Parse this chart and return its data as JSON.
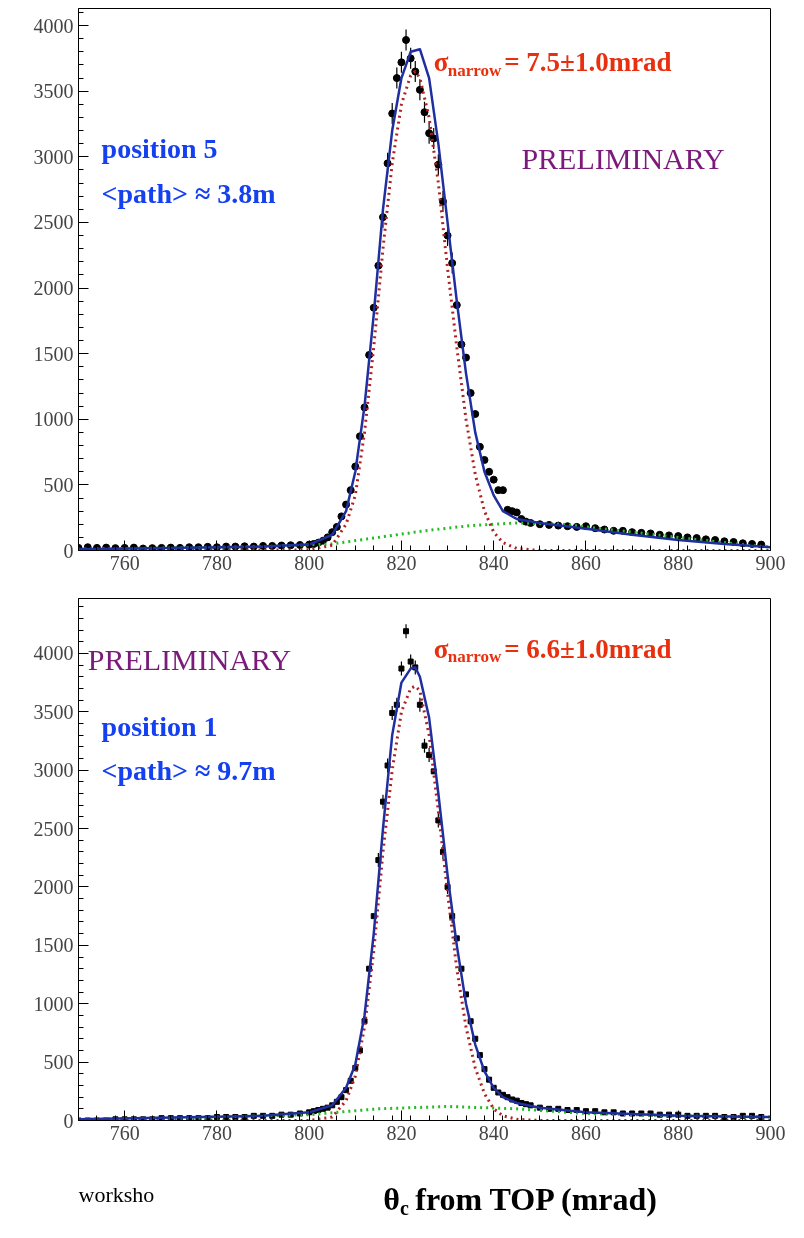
{
  "chart_data": [
    {
      "type": "scatter",
      "xlim": [
        750,
        900
      ],
      "ylim": [
        0,
        4130
      ],
      "xticks": [
        760,
        780,
        800,
        820,
        840,
        860,
        880,
        900
      ],
      "yticks": [
        0,
        500,
        1000,
        1500,
        2000,
        2500,
        3000,
        3500,
        4000
      ],
      "grid": false,
      "annotations": [
        "σ$_{narrow}$= 7.5±1.0mrad",
        "position 5",
        "<path> ≈ 3.8m",
        "PRELIMINARY"
      ],
      "series": [
        {
          "marker": "circle",
          "color": "#000000",
          "x": [
            750,
            752,
            754,
            756,
            758,
            760,
            762,
            764,
            766,
            768,
            770,
            772,
            774,
            776,
            778,
            780,
            782,
            784,
            786,
            788,
            790,
            792,
            794,
            796,
            798,
            800,
            801,
            802,
            803,
            804,
            805,
            806,
            807,
            808,
            809,
            810,
            811,
            812,
            813,
            814,
            815,
            816,
            817,
            818,
            819,
            820,
            821,
            822,
            823,
            824,
            825,
            826,
            827,
            828,
            829,
            830,
            831,
            832,
            833,
            834,
            835,
            836,
            837,
            838,
            839,
            840,
            841,
            842,
            843,
            844,
            845,
            846,
            847,
            848,
            850,
            852,
            854,
            856,
            858,
            860,
            862,
            864,
            866,
            868,
            870,
            872,
            874,
            876,
            878,
            880,
            882,
            884,
            886,
            888,
            890,
            892,
            894,
            896,
            898
          ],
          "values": [
            20,
            25,
            20,
            22,
            18,
            20,
            22,
            15,
            18,
            20,
            22,
            20,
            25,
            25,
            28,
            25,
            30,
            30,
            32,
            30,
            35,
            35,
            38,
            40,
            42,
            45,
            50,
            60,
            75,
            100,
            140,
            180,
            260,
            350,
            460,
            640,
            870,
            1090,
            1490,
            1850,
            2170,
            2540,
            2950,
            3330,
            3600,
            3720,
            3890,
            3750,
            3650,
            3510,
            3340,
            3180,
            3140,
            2940,
            2660,
            2400,
            2190,
            1870,
            1570,
            1470,
            1200,
            1040,
            790,
            690,
            600,
            540,
            460,
            460,
            310,
            300,
            290,
            240,
            220,
            210,
            200,
            195,
            190,
            185,
            180,
            185,
            170,
            160,
            150,
            150,
            140,
            135,
            130,
            120,
            115,
            110,
            100,
            95,
            85,
            80,
            70,
            65,
            55,
            50,
            45
          ],
          "errors": [
            null,
            null,
            null,
            null,
            null,
            null,
            null,
            null,
            null,
            null,
            null,
            null,
            null,
            null,
            null,
            null,
            null,
            null,
            null,
            null,
            null,
            null,
            null,
            null,
            null,
            null,
            null,
            null,
            null,
            null,
            null,
            null,
            null,
            null,
            null,
            null,
            null,
            null,
            null,
            null,
            null,
            80,
            80,
            80,
            80,
            80,
            80,
            80,
            80,
            80,
            80,
            80,
            80,
            80,
            80,
            80,
            80,
            null,
            null,
            null,
            null,
            null,
            null,
            null,
            null,
            null,
            null,
            null,
            null,
            null,
            null,
            null,
            null,
            null,
            null,
            null,
            null,
            null,
            null,
            null,
            null,
            null,
            null,
            null,
            null,
            null,
            null,
            null,
            null,
            null,
            null,
            null,
            null,
            null,
            null,
            null,
            null,
            null,
            null
          ]
        },
        {
          "type": "line",
          "color": "#22bb22",
          "line_style": "dotted",
          "x": [
            750,
            790,
            805,
            815,
            825,
            835,
            845,
            855,
            865,
            875,
            885,
            895,
            900
          ],
          "values": [
            10,
            30,
            50,
            100,
            150,
            190,
            210,
            200,
            160,
            120,
            80,
            40,
            25
          ]
        },
        {
          "type": "line",
          "color": "#b02020",
          "line_style": "dotted",
          "x": [
            750,
            800,
            805,
            808,
            810,
            812,
            814,
            816,
            818,
            820,
            822,
            823,
            824,
            826,
            828,
            830,
            832,
            834,
            836,
            838,
            840,
            842,
            845,
            850,
            900
          ],
          "values": [
            0,
            5,
            40,
            200,
            420,
            900,
            1550,
            2300,
            2950,
            3400,
            3620,
            3650,
            3600,
            3300,
            2800,
            2150,
            1550,
            1000,
            580,
            300,
            140,
            60,
            15,
            0,
            0
          ]
        },
        {
          "type": "line",
          "color": "#1f2fa0",
          "line_style": "solid",
          "x": [
            750,
            790,
            800,
            805,
            808,
            810,
            812,
            814,
            816,
            818,
            820,
            822,
            824,
            826,
            828,
            830,
            832,
            834,
            836,
            838,
            840,
            842,
            845,
            850,
            860,
            870,
            880,
            890,
            900
          ],
          "values": [
            10,
            30,
            45,
            120,
            300,
            600,
            1100,
            1800,
            2600,
            3200,
            3600,
            3800,
            3820,
            3600,
            3100,
            2500,
            1900,
            1350,
            900,
            600,
            420,
            300,
            240,
            210,
            165,
            120,
            80,
            50,
            25
          ]
        }
      ]
    },
    {
      "type": "scatter",
      "xlim": [
        750,
        900
      ],
      "ylim": [
        0,
        4470
      ],
      "xticks": [
        760,
        780,
        800,
        820,
        840,
        860,
        880,
        900
      ],
      "yticks": [
        0,
        500,
        1000,
        1500,
        2000,
        2500,
        3000,
        3500,
        4000
      ],
      "grid": false,
      "xlabel": "θ$_{c}$ from TOP (mrad)",
      "annotations": [
        "PRELIMINARY",
        "σ$_{narrow}$= 6.6±1.0mrad",
        "position 1",
        "<path> ≈ 9.7m",
        "worksho"
      ],
      "series": [
        {
          "marker": "square",
          "color": "#000000",
          "x": [
            750,
            752,
            754,
            756,
            758,
            760,
            762,
            764,
            766,
            768,
            770,
            772,
            774,
            776,
            778,
            780,
            782,
            784,
            786,
            788,
            790,
            792,
            794,
            796,
            798,
            800,
            801,
            802,
            803,
            804,
            805,
            806,
            807,
            808,
            809,
            810,
            811,
            812,
            813,
            814,
            815,
            816,
            817,
            818,
            819,
            820,
            821,
            822,
            823,
            824,
            825,
            826,
            827,
            828,
            829,
            830,
            831,
            832,
            833,
            834,
            835,
            836,
            837,
            838,
            839,
            840,
            841,
            842,
            843,
            844,
            845,
            846,
            847,
            848,
            850,
            852,
            854,
            856,
            858,
            860,
            862,
            864,
            866,
            868,
            870,
            872,
            874,
            876,
            878,
            880,
            882,
            884,
            886,
            888,
            890,
            892,
            894,
            896,
            898
          ],
          "values": [
            0,
            0,
            0,
            0,
            10,
            10,
            10,
            10,
            10,
            20,
            20,
            20,
            20,
            20,
            20,
            30,
            30,
            30,
            30,
            40,
            40,
            40,
            50,
            50,
            60,
            70,
            80,
            90,
            100,
            110,
            130,
            160,
            200,
            260,
            340,
            450,
            600,
            850,
            1300,
            1750,
            2230,
            2730,
            3040,
            3490,
            3560,
            3870,
            4190,
            3930,
            3880,
            3560,
            3210,
            3130,
            2990,
            2570,
            2300,
            2000,
            1750,
            1560,
            1300,
            1080,
            850,
            700,
            560,
            440,
            350,
            280,
            240,
            220,
            200,
            180,
            170,
            150,
            140,
            130,
            110,
            100,
            100,
            90,
            90,
            80,
            80,
            70,
            70,
            60,
            60,
            60,
            60,
            50,
            50,
            50,
            40,
            40,
            40,
            40,
            30,
            30,
            40,
            40,
            30
          ],
          "errors": [
            null,
            null,
            null,
            null,
            null,
            null,
            null,
            null,
            null,
            null,
            null,
            null,
            null,
            null,
            null,
            null,
            null,
            null,
            null,
            null,
            null,
            null,
            null,
            null,
            null,
            null,
            null,
            null,
            null,
            null,
            null,
            null,
            null,
            null,
            null,
            null,
            null,
            null,
            null,
            null,
            60,
            60,
            60,
            60,
            60,
            60,
            60,
            60,
            60,
            60,
            60,
            60,
            null,
            60,
            60,
            60,
            60,
            null,
            null,
            null,
            null,
            null,
            null,
            null,
            null,
            null,
            null,
            null,
            null,
            null,
            null,
            null,
            null,
            null,
            null,
            null,
            null,
            null,
            null,
            null,
            null,
            null,
            null,
            null,
            null,
            null,
            null,
            null,
            null,
            null,
            null,
            null,
            null,
            null,
            null,
            null,
            null,
            null,
            null
          ]
        },
        {
          "type": "line",
          "color": "#22bb22",
          "line_style": "dotted",
          "x": [
            750,
            770,
            790,
            800,
            815,
            830,
            845,
            860,
            880,
            900
          ],
          "values": [
            10,
            20,
            40,
            50,
            100,
            120,
            100,
            60,
            40,
            30
          ]
        },
        {
          "type": "line",
          "color": "#b02020",
          "line_style": "dotted",
          "x": [
            750,
            800,
            805,
            808,
            810,
            812,
            814,
            816,
            818,
            820,
            822,
            823,
            824,
            826,
            828,
            830,
            832,
            834,
            836,
            838,
            840,
            842,
            845,
            850,
            900
          ],
          "values": [
            0,
            0,
            30,
            170,
            380,
            800,
            1450,
            2300,
            3000,
            3500,
            3700,
            3720,
            3680,
            3300,
            2650,
            1950,
            1300,
            800,
            450,
            230,
            100,
            40,
            10,
            0,
            0
          ]
        },
        {
          "type": "line",
          "color": "#1f2fa0",
          "line_style": "solid",
          "x": [
            750,
            790,
            800,
            805,
            808,
            810,
            812,
            814,
            816,
            818,
            820,
            822,
            823,
            824,
            826,
            828,
            830,
            832,
            834,
            836,
            838,
            840,
            842,
            845,
            850,
            860,
            880,
            900
          ],
          "values": [
            10,
            40,
            70,
            130,
            280,
            480,
            900,
            1600,
            2500,
            3300,
            3750,
            3870,
            3880,
            3800,
            3450,
            2800,
            2100,
            1500,
            1000,
            650,
            420,
            280,
            200,
            150,
            110,
            70,
            40,
            30
          ]
        }
      ]
    }
  ]
}
